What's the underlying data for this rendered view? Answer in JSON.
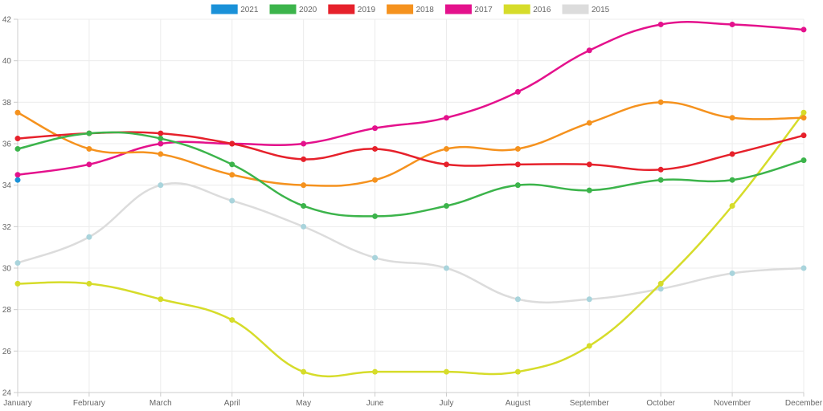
{
  "chart_data": {
    "type": "line",
    "categories": [
      "January",
      "February",
      "March",
      "April",
      "May",
      "June",
      "July",
      "August",
      "September",
      "October",
      "November",
      "December"
    ],
    "ylim": [
      24,
      42
    ],
    "yticks": [
      24,
      26,
      28,
      30,
      32,
      34,
      36,
      38,
      40,
      42
    ],
    "grid": true,
    "legend_position": "top-center",
    "series": [
      {
        "name": "2021",
        "color": "#1a91d8",
        "values": [
          34.25,
          null,
          null,
          null,
          null,
          null,
          null,
          null,
          null,
          null,
          null,
          null
        ]
      },
      {
        "name": "2020",
        "color": "#3cb44b",
        "values": [
          35.75,
          36.5,
          36.25,
          35.0,
          33.0,
          32.5,
          33.0,
          34.0,
          33.75,
          34.25,
          34.25,
          35.2
        ]
      },
      {
        "name": "2019",
        "color": "#e6212b",
        "values": [
          36.25,
          36.5,
          36.5,
          36.0,
          35.25,
          35.75,
          35.0,
          35.0,
          35.0,
          34.75,
          35.5,
          36.4
        ]
      },
      {
        "name": "2018",
        "color": "#f5921e",
        "values": [
          37.5,
          35.75,
          35.5,
          34.5,
          34.0,
          34.25,
          35.75,
          35.75,
          37.0,
          38.0,
          37.25,
          37.25
        ]
      },
      {
        "name": "2017",
        "color": "#e4118c",
        "values": [
          34.5,
          35.0,
          36.0,
          36.0,
          36.0,
          36.75,
          37.25,
          38.5,
          40.5,
          41.75,
          41.75,
          41.5
        ]
      },
      {
        "name": "2016",
        "color": "#d6dc2a",
        "values": [
          29.25,
          29.25,
          28.5,
          27.5,
          25.0,
          25.0,
          25.0,
          25.0,
          26.25,
          29.25,
          33.0,
          37.5
        ]
      },
      {
        "name": "2015",
        "color": "#dcdcdc",
        "point_color": "#a9d4dc",
        "values": [
          30.25,
          31.5,
          34.0,
          33.25,
          32.0,
          30.5,
          30.0,
          28.5,
          28.5,
          29.0,
          29.75,
          30.0
        ]
      }
    ]
  }
}
